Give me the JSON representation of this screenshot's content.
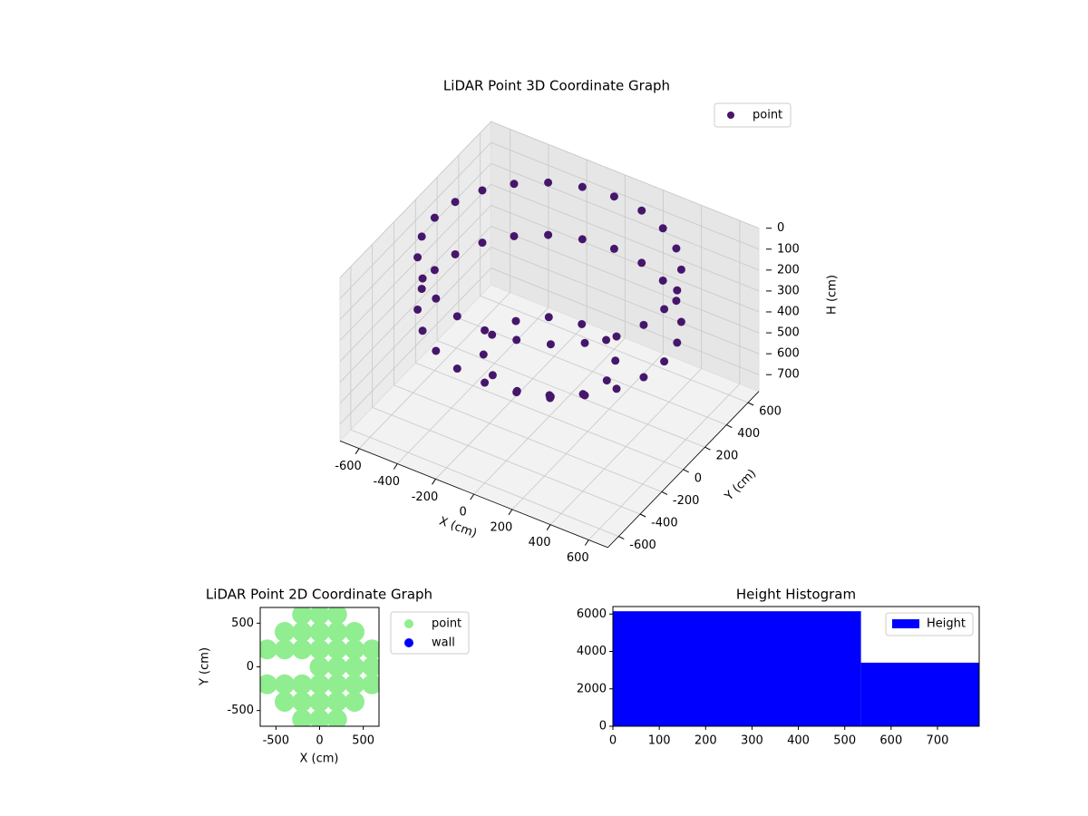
{
  "chart_data": [
    {
      "type": "scatter3d",
      "title": "LiDAR Point 3D Coordinate Graph",
      "xlabel": "X (cm)",
      "ylabel": "Y (cm)",
      "zlabel": "H (cm)",
      "series": [
        {
          "name": "point",
          "color": "#46166b",
          "x": [
            600,
            580,
            520,
            424,
            300,
            155,
            0,
            -155,
            -300,
            -424,
            -520,
            -580,
            -600,
            -580,
            -520,
            -424,
            -300,
            -155,
            0,
            155,
            300,
            424,
            520,
            580,
            600,
            580,
            520,
            424,
            300,
            155,
            0,
            -155,
            -300,
            -424,
            -520,
            -580,
            -600,
            -580,
            -520,
            -424,
            -300,
            -155,
            0,
            155,
            300,
            424,
            520,
            580,
            300,
            260,
            150,
            0,
            -150,
            -260,
            -300,
            -260,
            -150,
            0,
            150,
            260,
            0
          ],
          "y": [
            0,
            155,
            300,
            424,
            520,
            580,
            600,
            580,
            520,
            424,
            300,
            155,
            0,
            -155,
            -300,
            -424,
            -520,
            -580,
            -600,
            -580,
            -520,
            -424,
            -300,
            -155,
            0,
            155,
            300,
            424,
            520,
            580,
            600,
            580,
            520,
            424,
            300,
            155,
            0,
            -155,
            -300,
            -424,
            -520,
            -580,
            -600,
            -580,
            -520,
            -424,
            -300,
            -155,
            0,
            150,
            260,
            300,
            260,
            150,
            0,
            -150,
            -260,
            -300,
            -260,
            -150,
            0
          ],
          "z": [
            50,
            50,
            50,
            50,
            50,
            50,
            50,
            50,
            50,
            50,
            50,
            50,
            50,
            50,
            50,
            50,
            50,
            50,
            50,
            50,
            50,
            50,
            50,
            50,
            300,
            300,
            300,
            300,
            300,
            300,
            300,
            300,
            300,
            300,
            300,
            300,
            300,
            300,
            300,
            300,
            300,
            300,
            300,
            300,
            300,
            300,
            300,
            300,
            500,
            500,
            500,
            500,
            500,
            500,
            500,
            500,
            500,
            500,
            500,
            500,
            680
          ]
        }
      ],
      "xlim": [
        -700,
        700
      ],
      "ylim": [
        -700,
        700
      ],
      "zlim": [
        0,
        780
      ],
      "zinverted": true,
      "xticks": [
        -600,
        -400,
        -200,
        0,
        200,
        400,
        600
      ],
      "yticks": [
        -600,
        -400,
        -200,
        0,
        200,
        400,
        600
      ],
      "zticks": [
        0,
        100,
        200,
        300,
        400,
        500,
        600,
        700
      ],
      "grid": true,
      "legend": "upper right"
    },
    {
      "type": "scatter",
      "title": "LiDAR Point 2D Coordinate Graph",
      "xlabel": "X (cm)",
      "ylabel": "Y (cm)",
      "series": [
        {
          "name": "point",
          "color": "#90ee90",
          "x": [
            -200,
            0,
            200,
            -400,
            -200,
            0,
            200,
            400,
            -600,
            -400,
            -200,
            0,
            200,
            400,
            600,
            0,
            200,
            400,
            600,
            -600,
            -400,
            -200,
            0,
            200,
            400,
            600,
            -400,
            -200,
            0,
            200,
            400,
            -200,
            0,
            200
          ],
          "y": [
            600,
            600,
            600,
            400,
            400,
            400,
            400,
            400,
            200,
            200,
            200,
            200,
            200,
            200,
            200,
            0,
            0,
            0,
            0,
            -200,
            -200,
            -200,
            -200,
            -200,
            -200,
            -200,
            -400,
            -400,
            -400,
            -400,
            -400,
            -600,
            -600,
            -600
          ]
        },
        {
          "name": "wall",
          "color": "#0000ff",
          "x": [],
          "y": []
        }
      ],
      "xlim": [
        -680,
        680
      ],
      "ylim": [
        -680,
        680
      ],
      "xticks": [
        -500,
        0,
        500
      ],
      "yticks": [
        -500,
        0,
        500
      ],
      "legend": "outside right"
    },
    {
      "type": "histogram",
      "title": "Height Histogram",
      "label": "Height",
      "color": "#0000ff",
      "bins": [
        0,
        535,
        790
      ],
      "counts": [
        6150,
        3400
      ],
      "xlim": [
        0,
        790
      ],
      "ylim": [
        0,
        6400
      ],
      "xticks": [
        0,
        100,
        200,
        300,
        400,
        500,
        600,
        700
      ],
      "yticks": [
        0,
        2000,
        4000,
        6000
      ],
      "legend": "upper right"
    }
  ]
}
